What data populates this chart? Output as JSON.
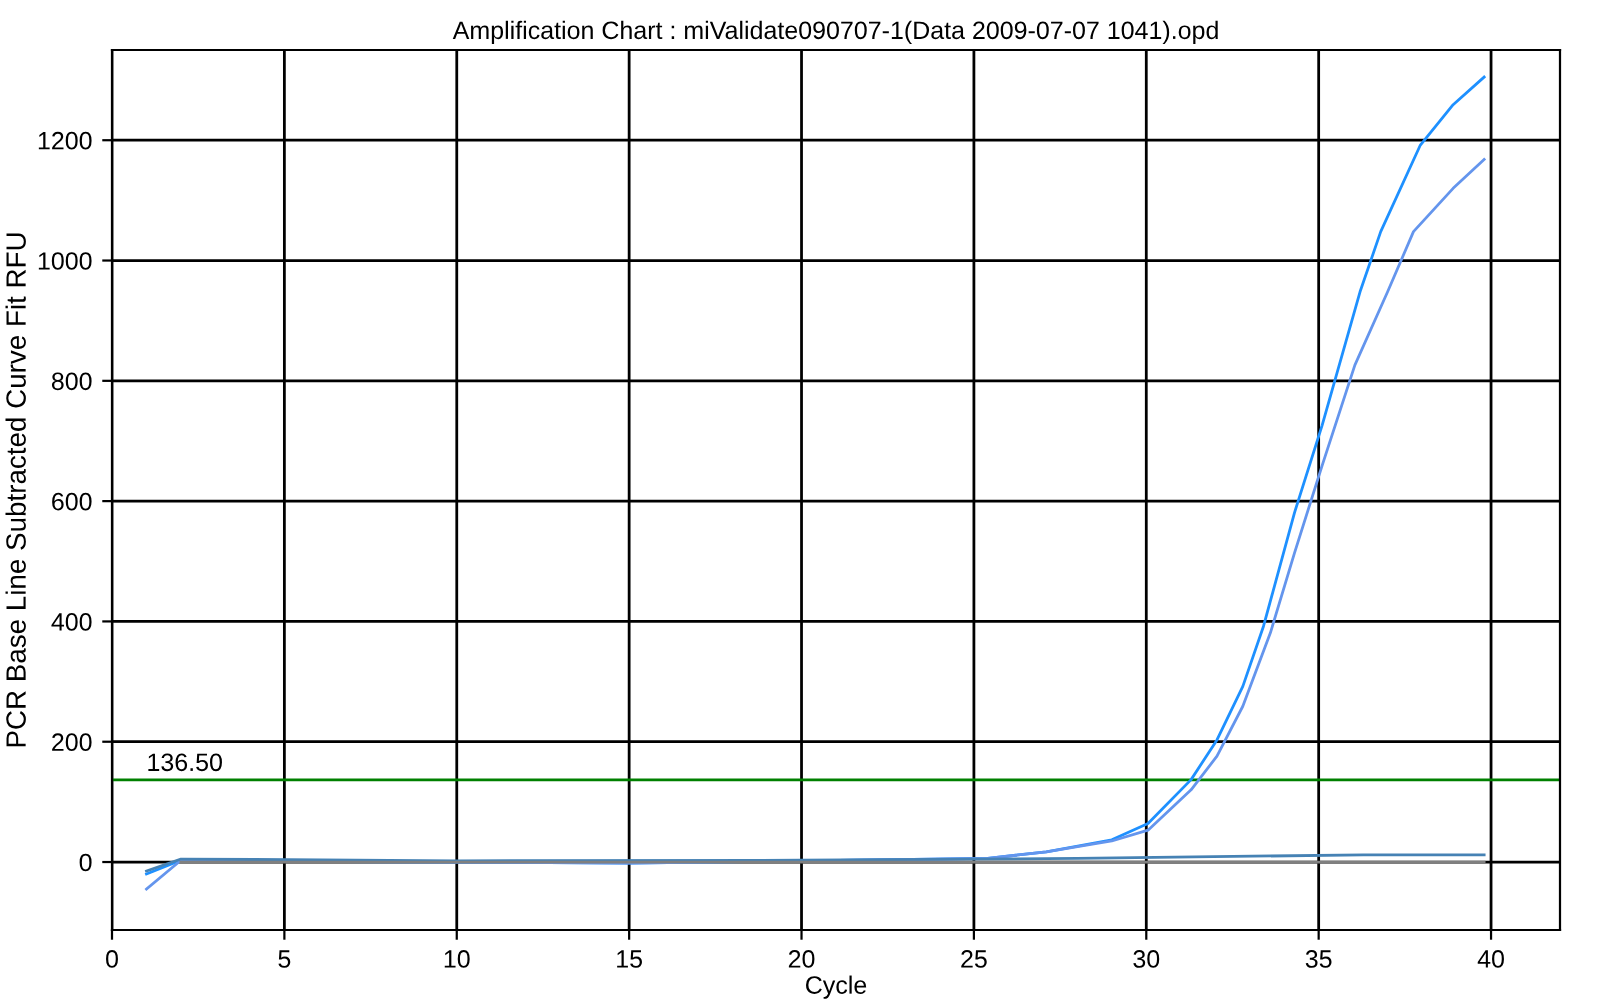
{
  "chart_data": {
    "type": "line",
    "title": "Amplification Chart : miValidate090707-1(Data 2009-07-07 1041).opd",
    "xlabel": "Cycle",
    "ylabel": "PCR Base Line Subtracted Curve Fit RFU",
    "xlim": [
      0,
      42
    ],
    "ylim": [
      -113,
      1350
    ],
    "xticks": [
      0,
      5,
      10,
      15,
      20,
      25,
      30,
      35,
      40
    ],
    "yticks": [
      0,
      200,
      400,
      600,
      800,
      1000,
      1200
    ],
    "grid": true,
    "marker": "none",
    "line_style": "solid",
    "series": [
      {
        "color": "#1e90ff",
        "x": [
          1,
          2,
          3,
          5,
          10,
          15,
          20,
          25.4,
          27.1,
          29,
          30.05,
          31.3,
          32.05,
          32.8,
          33.4,
          34.3,
          35.1,
          36.2,
          36.8,
          37.95,
          38.9,
          39.8
        ],
        "values": [
          -20,
          3,
          2,
          1,
          0,
          -2,
          2,
          6,
          17,
          37,
          64,
          137,
          203,
          292,
          392,
          581,
          726,
          948,
          1048,
          1192,
          1259,
          1305
        ]
      },
      {
        "color": "#6495ed",
        "x": [
          1,
          2,
          3,
          5,
          10,
          15,
          20,
          25.4,
          27.1,
          29,
          30.05,
          31.3,
          32.05,
          32.8,
          33.6,
          34.3,
          35.1,
          36.05,
          37,
          37.75,
          38.9,
          39.8
        ],
        "values": [
          -45,
          3,
          2,
          1,
          0,
          -2,
          2,
          6,
          17,
          35,
          53,
          120,
          176,
          259,
          381,
          514,
          659,
          826,
          948,
          1048,
          1120,
          1168
        ]
      },
      {
        "color": "#4682b4",
        "x": [
          1,
          2,
          10,
          20,
          28,
          36.3,
          39.8
        ],
        "values": [
          -15,
          5,
          2,
          3,
          6,
          12,
          12
        ]
      },
      {
        "color": "#808080",
        "x": [
          2,
          39.8
        ],
        "values": [
          0,
          0
        ]
      }
    ],
    "ref_lines": [
      {
        "axis": "y",
        "value": 136.5,
        "label": "136.50",
        "color": "#008000"
      }
    ]
  }
}
